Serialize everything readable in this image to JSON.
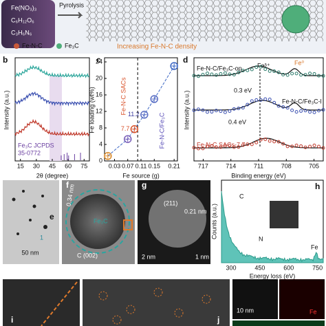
{
  "panel_a": {
    "precursors": [
      "Fe(NO₃)₃",
      "C₆H₁₂O₆",
      "C₃H₆N₆"
    ],
    "arrow": "Pyrolysis",
    "legend": [
      "Fe-N-C",
      "Fe₃C"
    ],
    "caption": "Increasing Fe-N-C density"
  },
  "panel_b": {
    "label": "b",
    "ylabel": "Intensity (a.u.)",
    "xlabel": "2θ (degree)",
    "xlim": [
      10,
      80
    ],
    "xticks": [
      15,
      30,
      45,
      60,
      75
    ],
    "reference": [
      "Fe₃C JCPDS",
      "35-0772"
    ]
  },
  "chart_data": {
    "type": "line",
    "label": "c",
    "ylabel": "Fe loading (wt%)",
    "xlabel": "Fe source (g)",
    "x": [
      0.01,
      0.07,
      0.09,
      0.12,
      0.15,
      0.21
    ],
    "values": [
      1.2,
      5.3,
      7.7,
      11.2,
      15,
      23
    ],
    "point_colors": [
      "#d98a2b",
      "#7a5fb8",
      "#d9532b",
      "#5b6fc4",
      "#5b6fc4",
      "#3b66c4"
    ],
    "xlim": [
      0,
      0.22
    ],
    "xticks": [
      0.03,
      0.07,
      0.11,
      0.15,
      0.21
    ],
    "ylim": [
      0,
      25
    ],
    "yticks": [
      0,
      4,
      8,
      12,
      16,
      20,
      24
    ],
    "divider_x": 0.1,
    "annotations": [
      "Fe-N-C SACs",
      "Fe-N-C/Fe₃C"
    ]
  },
  "panel_d": {
    "label": "d",
    "ylabel": "Intensity (a.u.)",
    "xlabel": "Binding energy (eV)",
    "xlim": [
      718,
      704
    ],
    "xticks": [
      717,
      714,
      711,
      708,
      705
    ],
    "samples": [
      "Fe-N-C/Fe₃C-op",
      "Fe-N-C/Fe₃C-l",
      "Fe-N-C SACs-7.7"
    ],
    "peaks": [
      "Feᵟ⁺",
      "Fe⁰"
    ],
    "shifts": [
      "0.3 eV",
      "0.4 eV"
    ]
  },
  "panel_e": {
    "label": "e",
    "scale": "50 nm",
    "mark": "1"
  },
  "panel_f": {
    "label": "f",
    "phase": "Fe₃C",
    "plane": "C (002)",
    "spacing": "0.34 nm"
  },
  "panel_g": {
    "label": "g",
    "plane": "(211)",
    "spacing": "0.21 nm",
    "scales": [
      "2 nm",
      "1 nm"
    ]
  },
  "panel_h": {
    "label": "h",
    "ylabel": "Counts (a.u.)",
    "xlabel": "Energy loss (eV)",
    "xlim": [
      250,
      780
    ],
    "xticks": [
      300,
      450,
      600,
      750
    ],
    "edges": [
      "C",
      "N",
      "Fe"
    ]
  },
  "panel_i": {
    "label": "i"
  },
  "panel_j": {
    "label": "j"
  },
  "panel_k": {
    "scale": "10 nm",
    "element": "Fe"
  }
}
